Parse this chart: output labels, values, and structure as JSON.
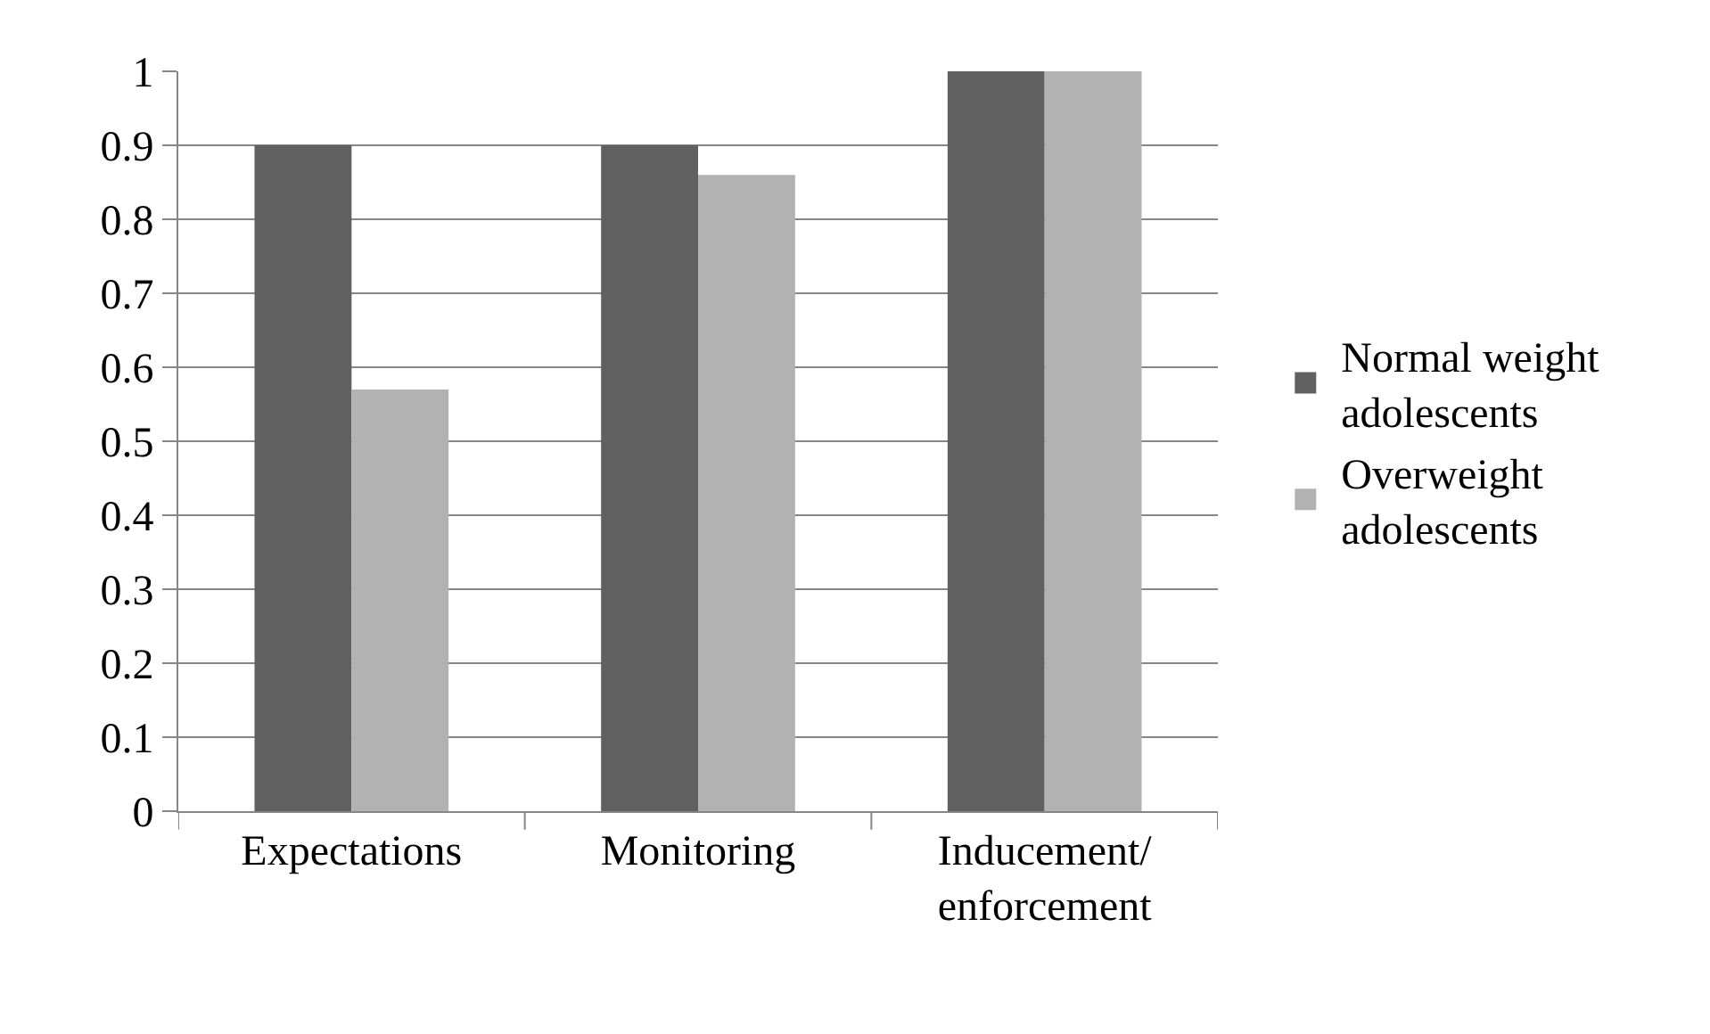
{
  "chart_data": {
    "type": "bar",
    "categories": [
      "Expectations",
      "Monitoring",
      "Inducement/enforcement"
    ],
    "series": [
      {
        "name": "Normal weight adolescents",
        "color": "#606060",
        "values": [
          0.9,
          0.9,
          1
        ]
      },
      {
        "name": "Overweight adolescents",
        "color": "#b2b2b2",
        "values": [
          0.57,
          0.86,
          1
        ]
      }
    ],
    "ylim": [
      0,
      1
    ],
    "yticks": [
      0,
      0.1,
      0.2,
      0.3,
      0.4,
      0.5,
      0.6,
      0.7,
      0.8,
      0.9,
      1
    ],
    "grid": "y",
    "legend": "right"
  }
}
